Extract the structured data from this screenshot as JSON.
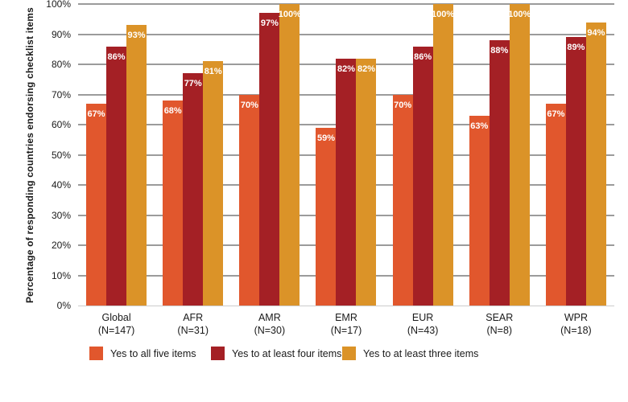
{
  "chart_data": {
    "type": "bar",
    "title": "",
    "ylabel": "Percentage of responding countries endorsing checklist items",
    "xlabel": "",
    "ylim": [
      0,
      100
    ],
    "ytick_step": 10,
    "ytick_suffix": "%",
    "grid": true,
    "legend_position": "bottom",
    "categories": [
      "Global",
      "AFR",
      "AMR",
      "EMR",
      "EUR",
      "SEAR",
      "WPR"
    ],
    "category_sublabels": [
      "(N=147)",
      "(N=31)",
      "(N=30)",
      "(N=17)",
      "(N=43)",
      "(N=8)",
      "(N=18)"
    ],
    "series": [
      {
        "name": "Yes to all five items",
        "color": "#E1572D",
        "values": [
          67,
          68,
          70,
          59,
          70,
          63,
          67
        ]
      },
      {
        "name": "Yes to at least four items",
        "color": "#A42025",
        "values": [
          86,
          77,
          97,
          82,
          86,
          88,
          89
        ]
      },
      {
        "name": "Yes to at least three items",
        "color": "#DB9328",
        "values": [
          93,
          81,
          100,
          82,
          100,
          100,
          94
        ]
      }
    ],
    "bar_label_suffix": "%",
    "bar_label_color": "#FFFFFF",
    "gridline_color": "#9B9B9B"
  }
}
